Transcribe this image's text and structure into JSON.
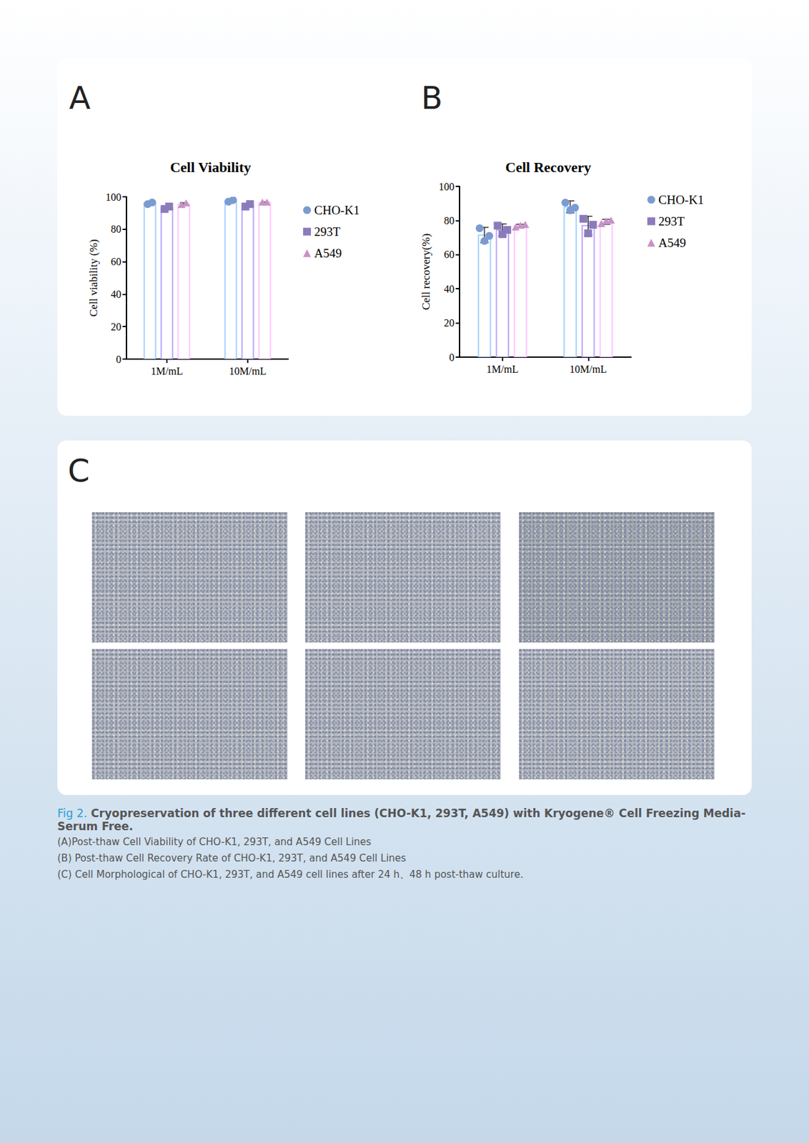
{
  "chart_data": [
    {
      "type": "bar",
      "title": "Cell Viability",
      "ylabel": "Cell viability (%)",
      "categories": [
        "1M/mL",
        "10M/mL"
      ],
      "ylim": [
        0,
        100
      ],
      "yticks": [
        0,
        20,
        40,
        60,
        80,
        100
      ],
      "grid": false,
      "legend": "right",
      "series": [
        {
          "name": "CHO-K1",
          "color": "#7b9bd1",
          "marker": "circle",
          "values": [
            96,
            97.5
          ],
          "errors": [
            0.6,
            0.8
          ],
          "points": [
            [
              95.5,
              96.5
            ],
            [
              97,
              98
            ]
          ]
        },
        {
          "name": "293T",
          "color": "#8c7bbb",
          "marker": "square",
          "values": [
            93.2,
            94.8
          ],
          "errors": [
            1.0,
            1.0
          ],
          "points": [
            [
              92.5,
              94
            ],
            [
              94,
              95.5
            ]
          ]
        },
        {
          "name": "A549",
          "color": "#c693c4",
          "marker": "triangle",
          "values": [
            95.5,
            96.5
          ],
          "errors": [
            0.8,
            0.3
          ],
          "points": [
            [
              95,
              96
            ],
            [
              96.5,
              96.5
            ]
          ]
        }
      ]
    },
    {
      "type": "bar",
      "title": "Cell Recovery",
      "ylabel": "Cell recovery(%)",
      "categories": [
        "1M/mL",
        "10M/mL"
      ],
      "ylim": [
        0,
        100
      ],
      "yticks": [
        0,
        20,
        40,
        60,
        80,
        100
      ],
      "grid": false,
      "legend": "right",
      "series": [
        {
          "name": "CHO-K1",
          "color": "#7b9bd1",
          "marker": "circle",
          "values": [
            71.5,
            88
          ],
          "errors": [
            4.5,
            3.5
          ],
          "points": [
            [
              75.5,
              68,
              71
            ],
            [
              90.5,
              86,
              87.5
            ]
          ]
        },
        {
          "name": "293T",
          "color": "#8c7bbb",
          "marker": "square",
          "values": [
            74.5,
            77
          ],
          "errors": [
            3.5,
            5.5
          ],
          "points": [
            [
              77,
              72,
              74.5
            ],
            [
              81,
              72.5,
              77.5
            ]
          ]
        },
        {
          "name": "A549",
          "color": "#c693c4",
          "marker": "triangle",
          "values": [
            76.8,
            79.2
          ],
          "errors": [
            1.0,
            1.5
          ],
          "points": [
            [
              76,
              77,
              77.5
            ],
            [
              78,
              79.5,
              80
            ]
          ]
        }
      ]
    }
  ],
  "panels": [
    "A",
    "B",
    "C"
  ],
  "caption": {
    "label": "Fig 2.",
    "title": "Cryopreservation of three different cell lines (CHO-K1, 293T, A549) with Kryogene® Cell Freezing Media-Serum Free.",
    "lines": [
      "(A)Post-thaw Cell Viability of CHO-K1, 293T, and A549 Cell Lines",
      "(B) Post-thaw Cell Recovery Rate of CHO-K1, 293T, and A549 Cell Lines",
      "(C) Cell Morphological of CHO-K1, 293T, and A549 cell lines after 24 h、48 h post-thaw culture."
    ]
  }
}
